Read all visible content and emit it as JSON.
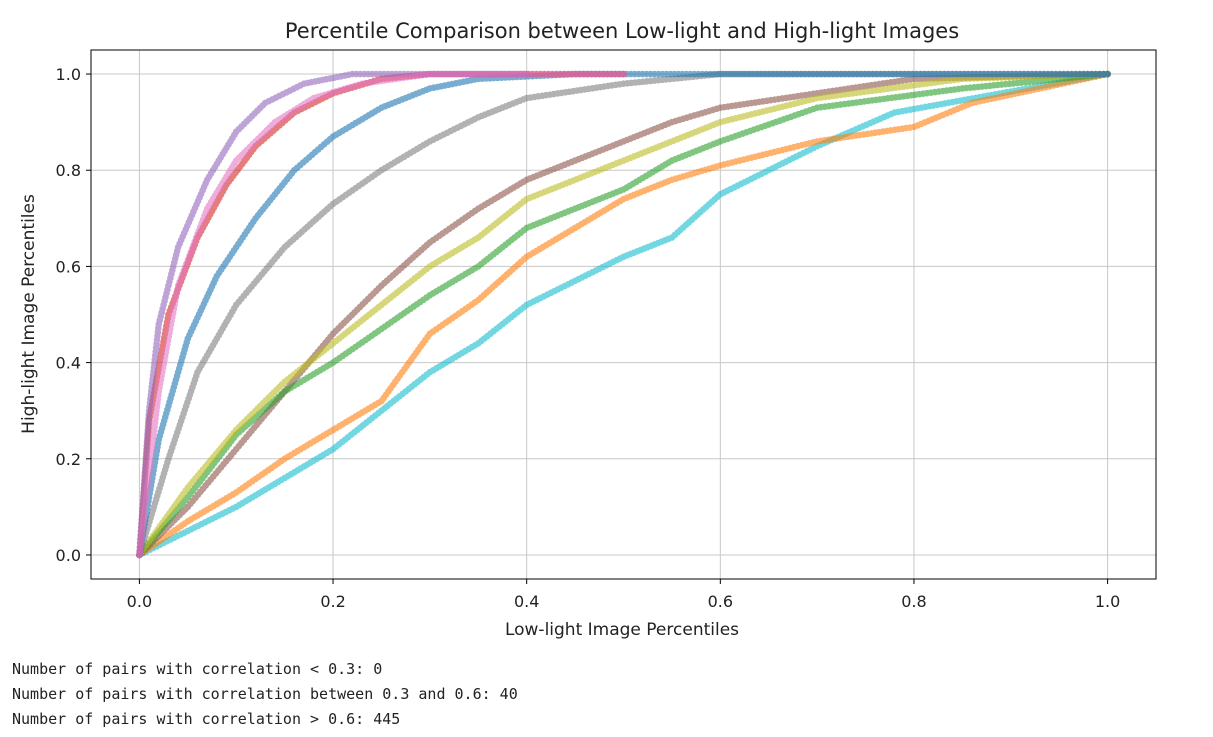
{
  "chart_data": {
    "type": "scatter",
    "title": "Percentile Comparison between Low-light and High-light Images",
    "xlabel": "Low-light Image Percentiles",
    "ylabel": "High-light Image Percentiles",
    "xlim": [
      -0.05,
      1.05
    ],
    "ylim": [
      -0.05,
      1.05
    ],
    "xticks": [
      0.0,
      0.2,
      0.4,
      0.6,
      0.8,
      1.0
    ],
    "xtick_labels": [
      "0.0",
      "0.2",
      "0.4",
      "0.6",
      "0.8",
      "1.0"
    ],
    "yticks": [
      0.0,
      0.2,
      0.4,
      0.6,
      0.8,
      1.0
    ],
    "ytick_labels": [
      "0.0",
      "0.2",
      "0.4",
      "0.6",
      "0.8",
      "1.0"
    ],
    "grid": true,
    "legend": "none",
    "marker_alpha": 0.6,
    "palette": [
      "#1f77b4",
      "#ff7f0e",
      "#2ca02c",
      "#d62728",
      "#9467bd",
      "#8c564b",
      "#e377c2",
      "#7f7f7f",
      "#bcbd22",
      "#17becf"
    ],
    "series": [
      {
        "color": "#17becf",
        "points": [
          [
            0.0,
            0.0
          ],
          [
            0.05,
            0.05
          ],
          [
            0.1,
            0.1
          ],
          [
            0.15,
            0.16
          ],
          [
            0.2,
            0.22
          ],
          [
            0.25,
            0.3
          ],
          [
            0.3,
            0.38
          ],
          [
            0.35,
            0.44
          ],
          [
            0.4,
            0.52
          ],
          [
            0.45,
            0.57
          ],
          [
            0.5,
            0.62
          ],
          [
            0.55,
            0.66
          ],
          [
            0.6,
            0.75
          ],
          [
            0.7,
            0.85
          ],
          [
            0.78,
            0.92
          ],
          [
            1.0,
            1.0
          ]
        ]
      },
      {
        "color": "#ff7f0e",
        "points": [
          [
            0.0,
            0.0
          ],
          [
            0.05,
            0.07
          ],
          [
            0.1,
            0.13
          ],
          [
            0.15,
            0.2
          ],
          [
            0.2,
            0.26
          ],
          [
            0.25,
            0.32
          ],
          [
            0.3,
            0.46
          ],
          [
            0.35,
            0.53
          ],
          [
            0.4,
            0.62
          ],
          [
            0.45,
            0.68
          ],
          [
            0.5,
            0.74
          ],
          [
            0.55,
            0.78
          ],
          [
            0.6,
            0.81
          ],
          [
            0.7,
            0.86
          ],
          [
            0.8,
            0.89
          ],
          [
            0.86,
            0.94
          ],
          [
            1.0,
            1.0
          ]
        ]
      },
      {
        "color": "#8c564b",
        "points": [
          [
            0.0,
            0.0
          ],
          [
            0.05,
            0.1
          ],
          [
            0.1,
            0.22
          ],
          [
            0.15,
            0.34
          ],
          [
            0.2,
            0.46
          ],
          [
            0.25,
            0.56
          ],
          [
            0.3,
            0.65
          ],
          [
            0.35,
            0.72
          ],
          [
            0.4,
            0.78
          ],
          [
            0.45,
            0.82
          ],
          [
            0.5,
            0.86
          ],
          [
            0.55,
            0.9
          ],
          [
            0.6,
            0.93
          ],
          [
            0.7,
            0.96
          ],
          [
            0.8,
            0.99
          ],
          [
            1.0,
            1.0
          ]
        ]
      },
      {
        "color": "#2ca02c",
        "points": [
          [
            0.0,
            0.0
          ],
          [
            0.05,
            0.12
          ],
          [
            0.1,
            0.25
          ],
          [
            0.15,
            0.34
          ],
          [
            0.2,
            0.4
          ],
          [
            0.25,
            0.47
          ],
          [
            0.3,
            0.54
          ],
          [
            0.35,
            0.6
          ],
          [
            0.4,
            0.68
          ],
          [
            0.45,
            0.72
          ],
          [
            0.5,
            0.76
          ],
          [
            0.55,
            0.82
          ],
          [
            0.6,
            0.86
          ],
          [
            0.7,
            0.93
          ],
          [
            0.85,
            0.97
          ],
          [
            1.0,
            1.0
          ]
        ]
      },
      {
        "color": "#bcbd22",
        "points": [
          [
            0.0,
            0.0
          ],
          [
            0.05,
            0.14
          ],
          [
            0.1,
            0.26
          ],
          [
            0.15,
            0.36
          ],
          [
            0.2,
            0.44
          ],
          [
            0.25,
            0.52
          ],
          [
            0.3,
            0.6
          ],
          [
            0.35,
            0.66
          ],
          [
            0.4,
            0.74
          ],
          [
            0.5,
            0.82
          ],
          [
            0.6,
            0.9
          ],
          [
            0.7,
            0.95
          ],
          [
            0.85,
            0.99
          ],
          [
            1.0,
            1.0
          ]
        ]
      },
      {
        "color": "#7f7f7f",
        "points": [
          [
            0.0,
            0.0
          ],
          [
            0.03,
            0.2
          ],
          [
            0.06,
            0.38
          ],
          [
            0.1,
            0.52
          ],
          [
            0.15,
            0.64
          ],
          [
            0.2,
            0.73
          ],
          [
            0.25,
            0.8
          ],
          [
            0.3,
            0.86
          ],
          [
            0.35,
            0.91
          ],
          [
            0.4,
            0.95
          ],
          [
            0.5,
            0.98
          ],
          [
            0.6,
            1.0
          ],
          [
            1.0,
            1.0
          ]
        ]
      },
      {
        "color": "#1f77b4",
        "points": [
          [
            0.0,
            0.0
          ],
          [
            0.02,
            0.24
          ],
          [
            0.05,
            0.45
          ],
          [
            0.08,
            0.58
          ],
          [
            0.12,
            0.7
          ],
          [
            0.16,
            0.8
          ],
          [
            0.2,
            0.87
          ],
          [
            0.25,
            0.93
          ],
          [
            0.3,
            0.97
          ],
          [
            0.35,
            0.99
          ],
          [
            0.45,
            1.0
          ],
          [
            1.0,
            1.0
          ]
        ]
      },
      {
        "color": "#d62728",
        "points": [
          [
            0.0,
            0.0
          ],
          [
            0.01,
            0.28
          ],
          [
            0.03,
            0.5
          ],
          [
            0.06,
            0.66
          ],
          [
            0.09,
            0.77
          ],
          [
            0.12,
            0.85
          ],
          [
            0.16,
            0.92
          ],
          [
            0.2,
            0.96
          ],
          [
            0.25,
            0.99
          ],
          [
            0.3,
            1.0
          ],
          [
            0.5,
            1.0
          ]
        ]
      },
      {
        "color": "#9467bd",
        "points": [
          [
            0.0,
            0.0
          ],
          [
            0.01,
            0.3
          ],
          [
            0.02,
            0.48
          ],
          [
            0.04,
            0.64
          ],
          [
            0.07,
            0.78
          ],
          [
            0.1,
            0.88
          ],
          [
            0.13,
            0.94
          ],
          [
            0.17,
            0.98
          ],
          [
            0.22,
            1.0
          ],
          [
            0.4,
            1.0
          ]
        ]
      },
      {
        "color": "#e377c2",
        "points": [
          [
            0.0,
            0.0
          ],
          [
            0.02,
            0.34
          ],
          [
            0.04,
            0.56
          ],
          [
            0.07,
            0.72
          ],
          [
            0.1,
            0.82
          ],
          [
            0.14,
            0.9
          ],
          [
            0.18,
            0.95
          ],
          [
            0.23,
            0.98
          ],
          [
            0.3,
            1.0
          ],
          [
            0.5,
            1.0
          ]
        ]
      }
    ]
  },
  "output": {
    "lines": [
      "Number of pairs with correlation < 0.3: 0",
      "Number of pairs with correlation between 0.3 and 0.6: 40",
      "Number of pairs with correlation > 0.6: 445"
    ]
  }
}
